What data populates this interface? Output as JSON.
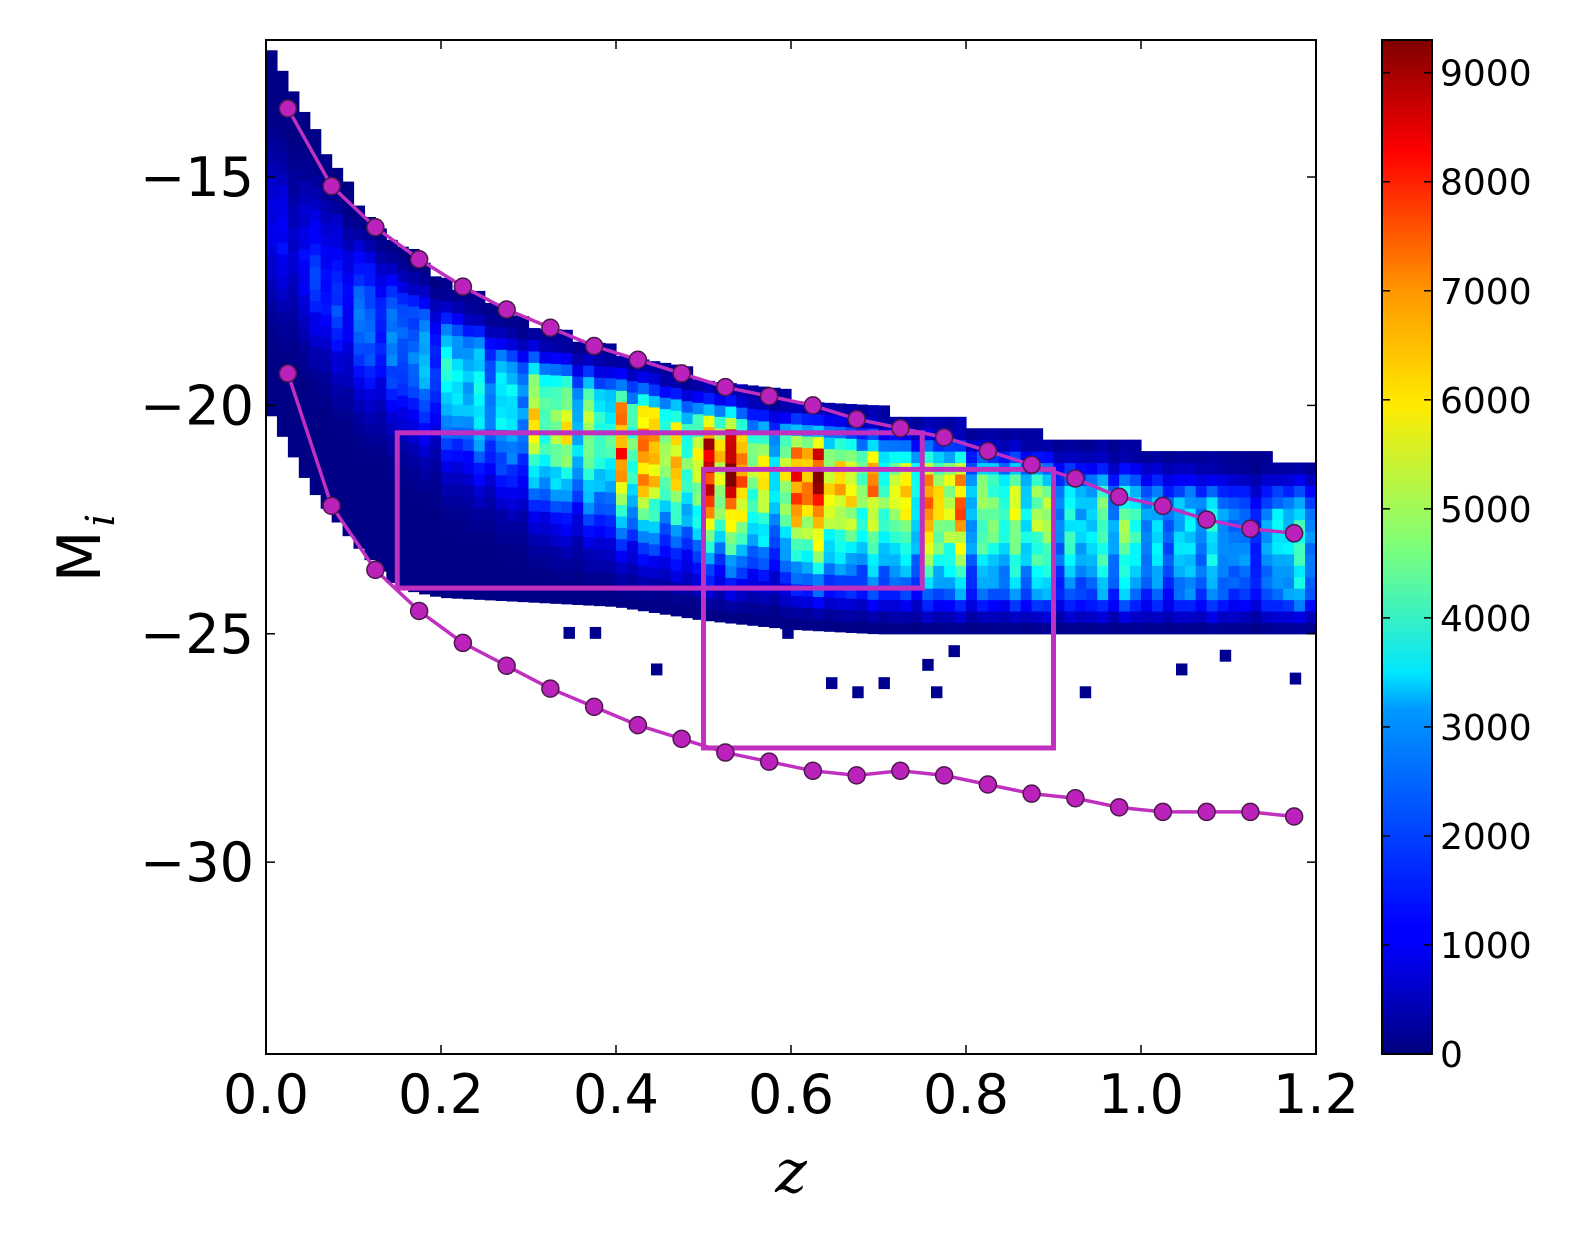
{
  "chart_data": {
    "type": "heatmap",
    "xlabel": "z",
    "ylabel": "M",
    "ylabel_subscript": "i",
    "xlim": [
      0.0,
      1.2
    ],
    "ylim": [
      -34.2,
      -12.0
    ],
    "xticks": [
      0.0,
      0.2,
      0.4,
      0.6,
      0.8,
      1.0,
      1.2
    ],
    "xtick_labels": [
      "0.0",
      "0.2",
      "0.4",
      "0.6",
      "0.8",
      "1.0",
      "1.2"
    ],
    "yticks": [
      -15,
      -20,
      -25,
      -30
    ],
    "ytick_labels": [
      "−15",
      "−20",
      "−25",
      "−30"
    ],
    "colorbar": {
      "colormap": "jet",
      "range": [
        0,
        9300
      ],
      "ticks": [
        0,
        1000,
        2000,
        3000,
        4000,
        5000,
        6000,
        7000,
        8000,
        9000
      ],
      "tick_labels": [
        "0",
        "1000",
        "2000",
        "3000",
        "4000",
        "5000",
        "6000",
        "7000",
        "8000",
        "9000"
      ]
    },
    "density": {
      "z_start": 0.0,
      "z_end": 1.2,
      "upper_edge": [
        {
          "x": 0.0,
          "y": -12.0
        },
        {
          "x": 0.05,
          "y": -14.0
        },
        {
          "x": 0.1,
          "y": -15.5
        },
        {
          "x": 0.15,
          "y": -16.5
        },
        {
          "x": 0.2,
          "y": -17.3
        },
        {
          "x": 0.3,
          "y": -18.3
        },
        {
          "x": 0.4,
          "y": -18.9
        },
        {
          "x": 0.5,
          "y": -19.5
        },
        {
          "x": 0.6,
          "y": -19.9
        },
        {
          "x": 0.7,
          "y": -20.2
        },
        {
          "x": 0.8,
          "y": -20.5
        },
        {
          "x": 0.9,
          "y": -20.8
        },
        {
          "x": 1.0,
          "y": -21.0
        },
        {
          "x": 1.1,
          "y": -21.2
        },
        {
          "x": 1.2,
          "y": -21.3
        }
      ],
      "lower_edge": [
        {
          "x": 0.0,
          "y": -20.0
        },
        {
          "x": 0.05,
          "y": -21.8
        },
        {
          "x": 0.1,
          "y": -23.0
        },
        {
          "x": 0.15,
          "y": -24.0
        },
        {
          "x": 0.2,
          "y": -24.2
        },
        {
          "x": 0.3,
          "y": -24.3
        },
        {
          "x": 0.4,
          "y": -24.4
        },
        {
          "x": 0.5,
          "y": -24.7
        },
        {
          "x": 0.6,
          "y": -24.9
        },
        {
          "x": 0.7,
          "y": -25.0
        },
        {
          "x": 0.8,
          "y": -25.0
        },
        {
          "x": 0.9,
          "y": -25.0
        },
        {
          "x": 1.0,
          "y": -25.0
        },
        {
          "x": 1.1,
          "y": -25.0
        },
        {
          "x": 1.2,
          "y": -25.0
        }
      ],
      "ridge": [
        {
          "x": 0.0,
          "y": -16.0
        },
        {
          "x": 0.1,
          "y": -18.0
        },
        {
          "x": 0.2,
          "y": -19.3
        },
        {
          "x": 0.3,
          "y": -20.2
        },
        {
          "x": 0.4,
          "y": -20.8
        },
        {
          "x": 0.5,
          "y": -21.3
        },
        {
          "x": 0.6,
          "y": -21.6
        },
        {
          "x": 0.7,
          "y": -21.9
        },
        {
          "x": 0.8,
          "y": -22.2
        },
        {
          "x": 0.9,
          "y": -22.5
        },
        {
          "x": 1.0,
          "y": -22.7
        },
        {
          "x": 1.1,
          "y": -22.9
        },
        {
          "x": 1.2,
          "y": -23.0
        }
      ],
      "column_peaks": [
        {
          "z": 0.025,
          "peak": 1200
        },
        {
          "z": 0.075,
          "peak": 1800
        },
        {
          "z": 0.125,
          "peak": 2300
        },
        {
          "z": 0.175,
          "peak": 2800
        },
        {
          "z": 0.225,
          "peak": 3800
        },
        {
          "z": 0.275,
          "peak": 3600
        },
        {
          "z": 0.325,
          "peak": 5800
        },
        {
          "z": 0.375,
          "peak": 5200
        },
        {
          "z": 0.425,
          "peak": 7600
        },
        {
          "z": 0.475,
          "peak": 6200
        },
        {
          "z": 0.525,
          "peak": 9200
        },
        {
          "z": 0.575,
          "peak": 5600
        },
        {
          "z": 0.625,
          "peak": 8700
        },
        {
          "z": 0.675,
          "peak": 6400
        },
        {
          "z": 0.725,
          "peak": 6000
        },
        {
          "z": 0.775,
          "peak": 6800
        },
        {
          "z": 0.825,
          "peak": 5000
        },
        {
          "z": 0.875,
          "peak": 5200
        },
        {
          "z": 0.925,
          "peak": 3800
        },
        {
          "z": 0.975,
          "peak": 4600
        },
        {
          "z": 1.025,
          "peak": 3200
        },
        {
          "z": 1.075,
          "peak": 3600
        },
        {
          "z": 1.125,
          "peak": 2600
        },
        {
          "z": 1.175,
          "peak": 4000
        }
      ],
      "outliers": [
        {
          "x": 0.34,
          "y": -25.1
        },
        {
          "x": 0.37,
          "y": -25.1
        },
        {
          "x": 0.44,
          "y": -25.9
        },
        {
          "x": 0.59,
          "y": -25.1
        },
        {
          "x": 0.64,
          "y": -26.2
        },
        {
          "x": 0.67,
          "y": -26.4
        },
        {
          "x": 0.7,
          "y": -26.2
        },
        {
          "x": 0.75,
          "y": -25.8
        },
        {
          "x": 0.76,
          "y": -26.4
        },
        {
          "x": 0.78,
          "y": -25.5
        },
        {
          "x": 0.93,
          "y": -26.4
        },
        {
          "x": 1.04,
          "y": -25.9
        },
        {
          "x": 1.09,
          "y": -25.6
        },
        {
          "x": 1.17,
          "y": -26.1
        }
      ]
    },
    "series": [
      {
        "line_color": "#c030c0",
        "marker_color": "#bb22bb",
        "x": [
          0.025,
          0.075,
          0.125,
          0.175,
          0.225,
          0.275,
          0.325,
          0.375,
          0.425,
          0.475,
          0.525,
          0.575,
          0.625,
          0.675,
          0.725,
          0.775,
          0.825,
          0.875,
          0.925,
          0.975,
          1.025,
          1.075,
          1.125,
          1.175
        ],
        "y": [
          -13.5,
          -15.2,
          -16.1,
          -16.8,
          -17.4,
          -17.9,
          -18.3,
          -18.7,
          -19.0,
          -19.3,
          -19.6,
          -19.8,
          -20.0,
          -20.3,
          -20.5,
          -20.7,
          -21.0,
          -21.3,
          -21.6,
          -22.0,
          -22.2,
          -22.5,
          -22.7,
          -22.8
        ]
      },
      {
        "line_color": "#c030c0",
        "marker_color": "#bb22bb",
        "x": [
          0.025,
          0.075,
          0.125,
          0.175,
          0.225,
          0.275,
          0.325,
          0.375,
          0.425,
          0.475,
          0.525,
          0.575,
          0.625,
          0.675,
          0.725,
          0.775,
          0.825,
          0.875,
          0.925,
          0.975,
          1.025,
          1.075,
          1.125,
          1.175
        ],
        "y": [
          -19.3,
          -22.2,
          -23.6,
          -24.5,
          -25.2,
          -25.7,
          -26.2,
          -26.6,
          -27.0,
          -27.3,
          -27.6,
          -27.8,
          -28.0,
          -28.1,
          -28.0,
          -28.1,
          -28.3,
          -28.5,
          -28.6,
          -28.8,
          -28.9,
          -28.9,
          -28.9,
          -29.0
        ]
      }
    ],
    "rectangles": [
      {
        "x0": 0.15,
        "x1": 0.75,
        "y0": -24.0,
        "y1": -20.6,
        "color": "#c030c0"
      },
      {
        "x0": 0.5,
        "x1": 0.9,
        "y0": -27.5,
        "y1": -21.4,
        "color": "#c030c0"
      }
    ]
  }
}
